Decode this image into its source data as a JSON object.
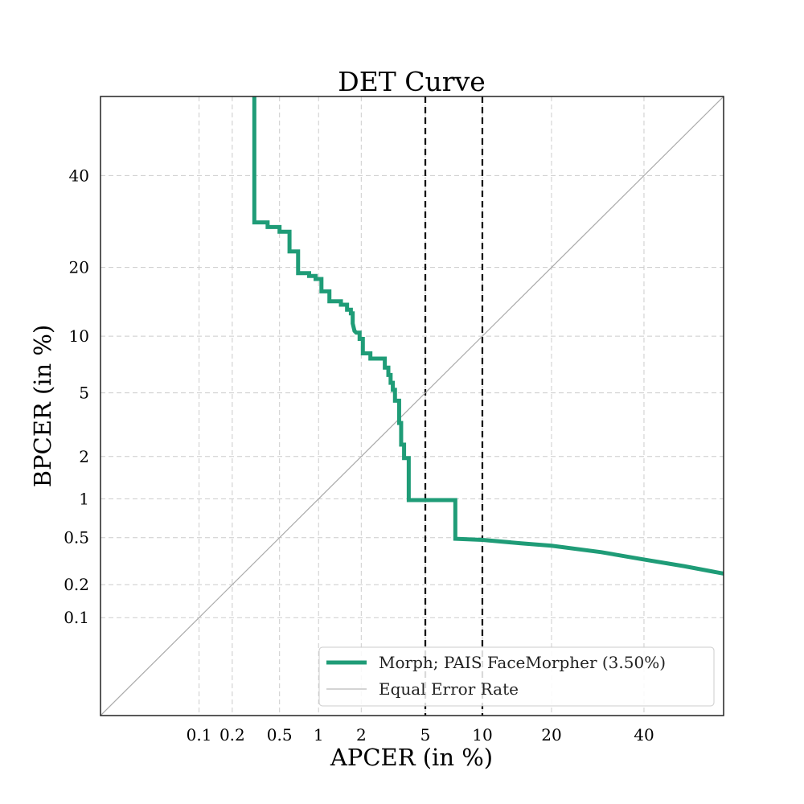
{
  "chart_data": {
    "type": "line",
    "title": "DET Curve",
    "xlabel": "APCER (in %)",
    "ylabel": "BPCER (in %)",
    "x_scale": "probit",
    "y_scale": "probit",
    "xlim": [
      0.01,
      60
    ],
    "ylim": [
      0.01,
      60
    ],
    "grid": true,
    "x_ticks": [
      {
        "value": 0.1,
        "label": "0.1"
      },
      {
        "value": 0.2,
        "label": "0.2"
      },
      {
        "value": 0.5,
        "label": "0.5"
      },
      {
        "value": 1,
        "label": "1"
      },
      {
        "value": 2,
        "label": "2"
      },
      {
        "value": 5,
        "label": "5"
      },
      {
        "value": 10,
        "label": "10"
      },
      {
        "value": 20,
        "label": "20"
      },
      {
        "value": 40,
        "label": "40"
      }
    ],
    "y_ticks": [
      {
        "value": 0.1,
        "label": "0.1"
      },
      {
        "value": 0.2,
        "label": "0.2"
      },
      {
        "value": 0.5,
        "label": "0.5"
      },
      {
        "value": 1,
        "label": "1"
      },
      {
        "value": 2,
        "label": "2"
      },
      {
        "value": 5,
        "label": "5"
      },
      {
        "value": 10,
        "label": "10"
      },
      {
        "value": 20,
        "label": "20"
      },
      {
        "value": 40,
        "label": "40"
      }
    ],
    "vertical_reference_lines": [
      {
        "x": 5,
        "style": "dashed",
        "color": "#000000"
      },
      {
        "x": 10,
        "style": "dashed",
        "color": "#000000"
      }
    ],
    "series": [
      {
        "name": "Morph; PAIS FaceMorpher (3.50%)",
        "color": "#1f9c77",
        "points": [
          [
            0.31,
            60
          ],
          [
            0.31,
            29
          ],
          [
            0.4,
            29
          ],
          [
            0.4,
            28
          ],
          [
            0.5,
            28
          ],
          [
            0.5,
            27
          ],
          [
            0.6,
            27
          ],
          [
            0.6,
            23
          ],
          [
            0.7,
            23
          ],
          [
            0.7,
            19
          ],
          [
            0.85,
            19
          ],
          [
            0.85,
            18.5
          ],
          [
            0.95,
            18.5
          ],
          [
            0.95,
            18
          ],
          [
            1.05,
            18
          ],
          [
            1.05,
            16
          ],
          [
            1.2,
            16
          ],
          [
            1.2,
            14.5
          ],
          [
            1.45,
            14.5
          ],
          [
            1.45,
            14
          ],
          [
            1.6,
            14
          ],
          [
            1.6,
            13.3
          ],
          [
            1.7,
            13.3
          ],
          [
            1.7,
            12.8
          ],
          [
            1.75,
            12.8
          ],
          [
            1.75,
            11.5
          ],
          [
            1.8,
            10.6
          ],
          [
            1.85,
            10.4
          ],
          [
            1.95,
            10.4
          ],
          [
            1.95,
            9.7
          ],
          [
            2.05,
            9.7
          ],
          [
            2.05,
            8.2
          ],
          [
            2.3,
            8.2
          ],
          [
            2.3,
            7.7
          ],
          [
            2.85,
            7.7
          ],
          [
            2.85,
            6.9
          ],
          [
            3.0,
            6.9
          ],
          [
            3.0,
            6.3
          ],
          [
            3.1,
            6.3
          ],
          [
            3.1,
            5.7
          ],
          [
            3.2,
            5.7
          ],
          [
            3.2,
            5.2
          ],
          [
            3.3,
            5.2
          ],
          [
            3.3,
            4.5
          ],
          [
            3.5,
            4.5
          ],
          [
            3.5,
            3.3
          ],
          [
            3.6,
            3.3
          ],
          [
            3.6,
            2.4
          ],
          [
            3.75,
            2.4
          ],
          [
            3.75,
            1.95
          ],
          [
            4.0,
            1.95
          ],
          [
            4.0,
            0.98
          ],
          [
            7.3,
            0.98
          ],
          [
            7.3,
            0.49
          ],
          [
            10,
            0.48
          ],
          [
            15,
            0.45
          ],
          [
            20,
            0.43
          ],
          [
            30,
            0.38
          ],
          [
            40,
            0.33
          ],
          [
            50,
            0.29
          ],
          [
            60,
            0.25
          ]
        ]
      },
      {
        "name": "Equal Error Rate",
        "color": "#aaaaaa",
        "points": [
          [
            0.01,
            0.01
          ],
          [
            60,
            60
          ]
        ]
      }
    ],
    "legend_position": "lower-right"
  }
}
